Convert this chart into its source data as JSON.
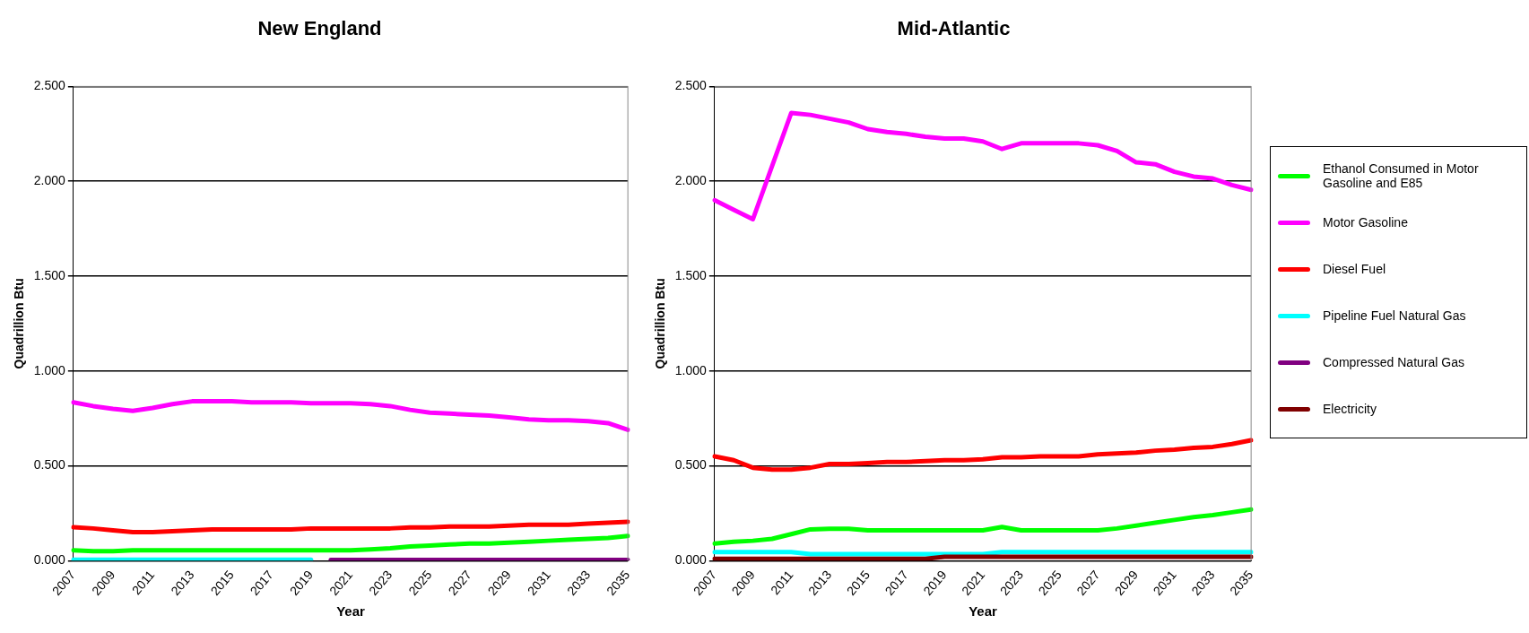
{
  "chart_data": [
    {
      "type": "line",
      "title": "New England",
      "xlabel": "Year",
      "ylabel": "Quadrillion Btu",
      "categories": [
        "2007",
        null,
        "2009",
        null,
        "2011",
        null,
        "2013",
        null,
        "2015",
        null,
        "2017",
        null,
        "2019",
        null,
        "2021",
        null,
        "2023",
        null,
        "2025",
        null,
        "2027",
        null,
        "2029",
        null,
        "2031",
        null,
        "2033",
        null,
        "2035"
      ],
      "series": [
        {
          "color": "#00ff00",
          "values": [
            0.055,
            0.05,
            0.05,
            0.055,
            0.055,
            0.055,
            0.055,
            0.055,
            0.055,
            0.055,
            0.055,
            0.055,
            0.055,
            0.055,
            0.055,
            0.06,
            0.065,
            0.075,
            0.08,
            0.085,
            0.09,
            0.09,
            0.095,
            0.1,
            0.105,
            0.11,
            0.115,
            0.12,
            0.13
          ]
        },
        {
          "color": "#ff00ff",
          "values": [
            0.835,
            0.815,
            0.8,
            0.79,
            0.805,
            0.825,
            0.84,
            0.84,
            0.84,
            0.835,
            0.835,
            0.835,
            0.83,
            0.83,
            0.83,
            0.825,
            0.815,
            0.795,
            0.78,
            0.775,
            0.77,
            0.765,
            0.755,
            0.745,
            0.74,
            0.74,
            0.735,
            0.725,
            0.69
          ]
        },
        {
          "color": "#ff0000",
          "values": [
            0.176,
            0.17,
            0.16,
            0.15,
            0.15,
            0.155,
            0.16,
            0.165,
            0.165,
            0.165,
            0.165,
            0.165,
            0.17,
            0.17,
            0.17,
            0.17,
            0.17,
            0.175,
            0.175,
            0.18,
            0.18,
            0.18,
            0.185,
            0.19,
            0.19,
            0.19,
            0.195,
            0.2,
            0.205
          ]
        },
        {
          "color": "#00ffff",
          "values": [
            0.005,
            0.005,
            0.005,
            0.005,
            0.005,
            0.005,
            0.005,
            0.005,
            0.005,
            0.005,
            0.005,
            0.005,
            0.005,
            null,
            null,
            null,
            null,
            null,
            null,
            null,
            null,
            null,
            null,
            null,
            null,
            null,
            null,
            null,
            null
          ]
        },
        {
          "color": "#800080",
          "values": [
            null,
            null,
            null,
            null,
            null,
            null,
            null,
            null,
            null,
            null,
            null,
            null,
            null,
            0.004,
            0.004,
            0.004,
            0.004,
            0.004,
            0.004,
            0.004,
            0.004,
            0.004,
            0.004,
            0.004,
            0.004,
            0.004,
            0.004,
            0.004,
            0.004
          ]
        }
      ],
      "ylim": [
        0,
        2.5
      ],
      "yticks": [
        {
          "value": 0,
          "label": "0.000"
        },
        {
          "value": 0.5,
          "label": "0.500"
        },
        {
          "value": 1,
          "label": "1.000"
        },
        {
          "value": 1.5,
          "label": "1.500"
        },
        {
          "value": 2,
          "label": "2.000"
        },
        {
          "value": 2.5,
          "label": "2.500"
        }
      ],
      "grid": "y",
      "legend": false,
      "marker": "none",
      "line_style": "solid"
    },
    {
      "type": "line",
      "title": "Mid-Atlantic",
      "xlabel": "Year",
      "ylabel": "Quadrillion Btu",
      "categories": [
        "2007",
        null,
        "2009",
        null,
        "2011",
        null,
        "2013",
        null,
        "2015",
        null,
        "2017",
        null,
        "2019",
        null,
        "2021",
        null,
        "2023",
        null,
        "2025",
        null,
        "2027",
        null,
        "2029",
        null,
        "2031",
        null,
        "2033",
        null,
        "2035"
      ],
      "series": [
        {
          "name": "Ethanol Consumed in Motor Gasoline and E85",
          "color": "#00ff00",
          "values": [
            0.09,
            0.1,
            0.105,
            0.115,
            0.14,
            0.165,
            0.168,
            0.168,
            0.16,
            0.16,
            0.16,
            0.16,
            0.16,
            0.16,
            0.16,
            0.178,
            0.16,
            0.16,
            0.16,
            0.16,
            0.16,
            0.17,
            0.185,
            0.2,
            0.215,
            0.23,
            0.24,
            0.255,
            0.27
          ]
        },
        {
          "name": "Motor Gasoline",
          "color": "#ff00ff",
          "values": [
            1.9,
            1.85,
            1.8,
            2.08,
            2.36,
            2.35,
            2.33,
            2.31,
            2.275,
            2.26,
            2.25,
            2.235,
            2.225,
            2.225,
            2.21,
            2.17,
            2.2,
            2.2,
            2.2,
            2.2,
            2.19,
            2.16,
            2.1,
            2.09,
            2.05,
            2.025,
            2.015,
            1.98,
            1.955
          ]
        },
        {
          "name": "Diesel Fuel",
          "color": "#ff0000",
          "values": [
            0.55,
            0.53,
            0.49,
            0.48,
            0.48,
            0.49,
            0.51,
            0.51,
            0.515,
            0.52,
            0.52,
            0.525,
            0.53,
            0.53,
            0.535,
            0.545,
            0.545,
            0.55,
            0.55,
            0.55,
            0.56,
            0.565,
            0.57,
            0.58,
            0.585,
            0.595,
            0.6,
            0.615,
            0.635
          ]
        },
        {
          "name": "Pipeline Fuel Natural Gas",
          "color": "#00ffff",
          "values": [
            0.045,
            0.045,
            0.045,
            0.045,
            0.045,
            0.035,
            0.035,
            0.035,
            0.035,
            0.035,
            0.035,
            0.035,
            0.035,
            0.035,
            0.035,
            0.045,
            0.045,
            0.045,
            0.045,
            0.045,
            0.045,
            0.045,
            0.045,
            0.045,
            0.045,
            0.045,
            0.045,
            0.045,
            0.045
          ]
        },
        {
          "name": "Compressed Natural Gas",
          "color": "#800080",
          "values": [
            null,
            null,
            null,
            null,
            null,
            null,
            null,
            null,
            null,
            null,
            null,
            null,
            null,
            null,
            null,
            null,
            null,
            null,
            null,
            null,
            null,
            null,
            null,
            null,
            null,
            null,
            null,
            null,
            null
          ]
        },
        {
          "name": "Electricity",
          "color": "#800000",
          "values": [
            0.01,
            0.01,
            0.01,
            0.01,
            0.01,
            0.01,
            0.01,
            0.01,
            0.01,
            0.01,
            0.01,
            0.01,
            0.02,
            0.02,
            0.02,
            0.02,
            0.02,
            0.02,
            0.02,
            0.02,
            0.02,
            0.02,
            0.02,
            0.02,
            0.02,
            0.02,
            0.02,
            0.02,
            0.02
          ]
        }
      ],
      "ylim": [
        0,
        2.5
      ],
      "yticks": [
        {
          "value": 0,
          "label": "0.000"
        },
        {
          "value": 0.5,
          "label": "0.500"
        },
        {
          "value": 1,
          "label": "1.000"
        },
        {
          "value": 1.5,
          "label": "1.500"
        },
        {
          "value": 2,
          "label": "2.000"
        },
        {
          "value": 2.5,
          "label": "2.500"
        }
      ],
      "grid": "y",
      "legend": "right",
      "marker": "none",
      "line_style": "solid"
    }
  ]
}
